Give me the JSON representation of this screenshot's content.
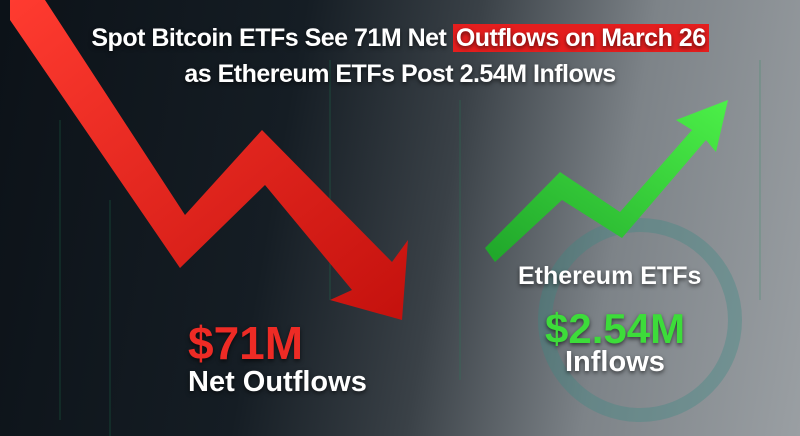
{
  "headline": {
    "line1_prefix": "Spot Bitcoin ETFs See 71M Net",
    "line1_highlight": "Outflows on March 26",
    "line2": "as Ethereum ETFs Post 2.54M Inflows"
  },
  "bitcoin": {
    "amount": "$71M",
    "label": "Net Outflows",
    "trend": "down",
    "color": "#e82a24"
  },
  "ethereum": {
    "title": "Ethereum ETFs",
    "amount": "$2.54M",
    "label": "Inflows",
    "trend": "up",
    "color": "#3ddc3a"
  },
  "colors": {
    "highlight": "#e41e1e",
    "text": "#ffffff"
  }
}
